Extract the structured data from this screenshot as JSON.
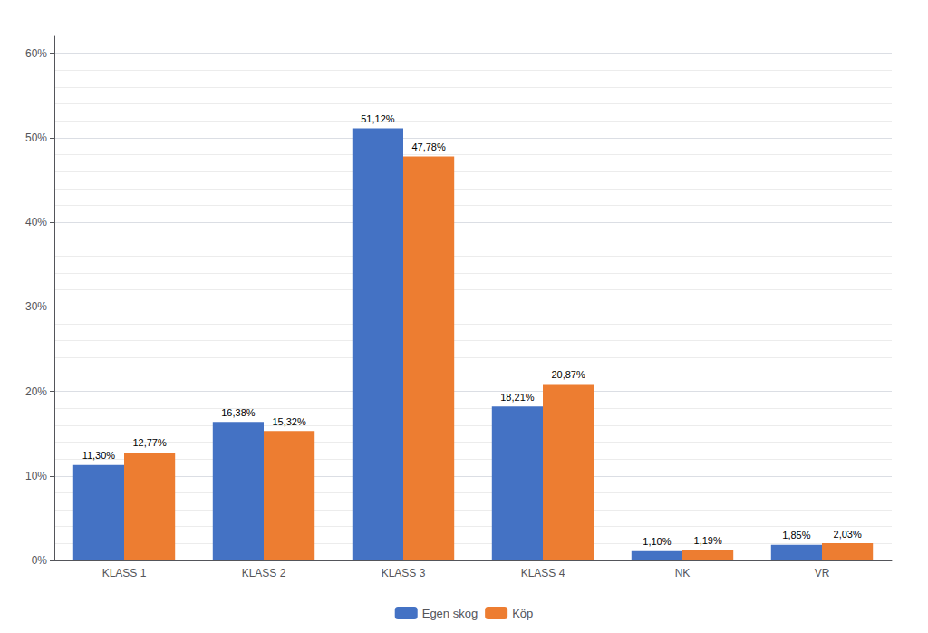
{
  "chart_data": {
    "type": "bar",
    "categories": [
      "KLASS 1",
      "KLASS 2",
      "KLASS 3",
      "KLASS 4",
      "NK",
      "VR"
    ],
    "series": [
      {
        "name": "Egen skog",
        "color": "#4472C4",
        "values": [
          11.3,
          16.38,
          51.12,
          18.21,
          1.1,
          1.85
        ],
        "value_labels": [
          "11,30%",
          "16,38%",
          "51,12%",
          "18,21%",
          "1,10%",
          "1,85%"
        ]
      },
      {
        "name": "Köp",
        "color": "#ED7D31",
        "values": [
          12.77,
          15.32,
          47.78,
          20.87,
          1.19,
          2.03
        ],
        "value_labels": [
          "12,77%",
          "15,32%",
          "47,78%",
          "20,87%",
          "1,19%",
          "2,03%"
        ]
      }
    ],
    "ylim": [
      0,
      62
    ],
    "yticks": [
      {
        "value": 0,
        "label": "0%"
      },
      {
        "value": 10,
        "label": "10%"
      },
      {
        "value": 20,
        "label": "20%"
      },
      {
        "value": 30,
        "label": "30%"
      },
      {
        "value": 40,
        "label": "40%"
      },
      {
        "value": 50,
        "label": "50%"
      },
      {
        "value": 60,
        "label": "60%"
      }
    ],
    "grid": true,
    "legend": "bottom",
    "data_labels": true
  }
}
